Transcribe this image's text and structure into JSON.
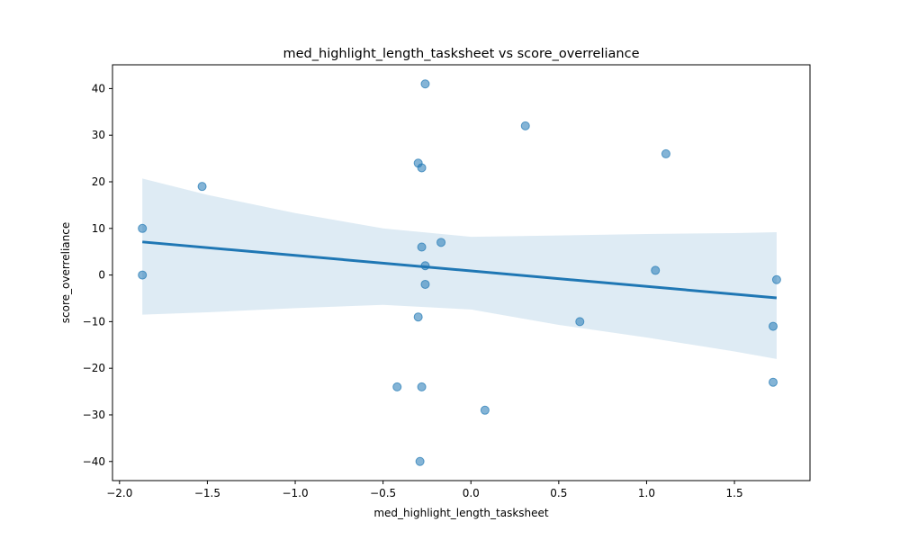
{
  "chart_data": {
    "type": "scatter",
    "title": "med_highlight_length_tasksheet vs score_overreliance",
    "xlabel": "med_highlight_length_tasksheet",
    "ylabel": "score_overreliance",
    "xlim": [
      -2.04,
      1.93
    ],
    "ylim": [
      -44.1,
      45.1
    ],
    "x_ticks": [
      -2.0,
      -1.5,
      -1.0,
      -0.5,
      0.0,
      0.5,
      1.0,
      1.5
    ],
    "x_tick_labels": [
      "−2.0",
      "−1.5",
      "−1.0",
      "−0.5",
      "0.0",
      "0.5",
      "1.0",
      "1.5"
    ],
    "y_ticks": [
      -40,
      -30,
      -20,
      -10,
      0,
      10,
      20,
      30,
      40
    ],
    "y_tick_labels": [
      "−40",
      "−30",
      "−20",
      "−10",
      "0",
      "10",
      "20",
      "30",
      "40"
    ],
    "grid": false,
    "colors": {
      "points": "#1f77b4",
      "line": "#1f77b4",
      "band": "#1f77b4"
    },
    "points": [
      {
        "x": -1.87,
        "y": 10
      },
      {
        "x": -1.87,
        "y": 0
      },
      {
        "x": -1.53,
        "y": 19
      },
      {
        "x": -0.42,
        "y": -24
      },
      {
        "x": -0.3,
        "y": 24
      },
      {
        "x": -0.3,
        "y": -9
      },
      {
        "x": -0.29,
        "y": -40
      },
      {
        "x": -0.28,
        "y": 23
      },
      {
        "x": -0.28,
        "y": 6
      },
      {
        "x": -0.28,
        "y": -24
      },
      {
        "x": -0.26,
        "y": 41
      },
      {
        "x": -0.26,
        "y": 2
      },
      {
        "x": -0.26,
        "y": -2
      },
      {
        "x": -0.17,
        "y": 7
      },
      {
        "x": 0.08,
        "y": -29
      },
      {
        "x": 0.31,
        "y": 32
      },
      {
        "x": 0.62,
        "y": -10
      },
      {
        "x": 1.05,
        "y": 1
      },
      {
        "x": 1.11,
        "y": 26
      },
      {
        "x": 1.72,
        "y": -11
      },
      {
        "x": 1.72,
        "y": -23
      },
      {
        "x": 1.74,
        "y": -1
      }
    ],
    "regression": {
      "x": [
        -1.87,
        1.74
      ],
      "y": [
        7.1,
        -4.9
      ]
    },
    "confidence_band": {
      "x": [
        -1.87,
        -1.5,
        -1.0,
        -0.5,
        0.0,
        0.5,
        1.0,
        1.5,
        1.74
      ],
      "upper": [
        20.7,
        17.2,
        13.3,
        10.0,
        8.2,
        8.5,
        8.8,
        9.0,
        9.2
      ],
      "lower": [
        -8.5,
        -8.0,
        -7.1,
        -6.4,
        -7.4,
        -10.7,
        -13.4,
        -16.4,
        -18.0
      ]
    }
  }
}
